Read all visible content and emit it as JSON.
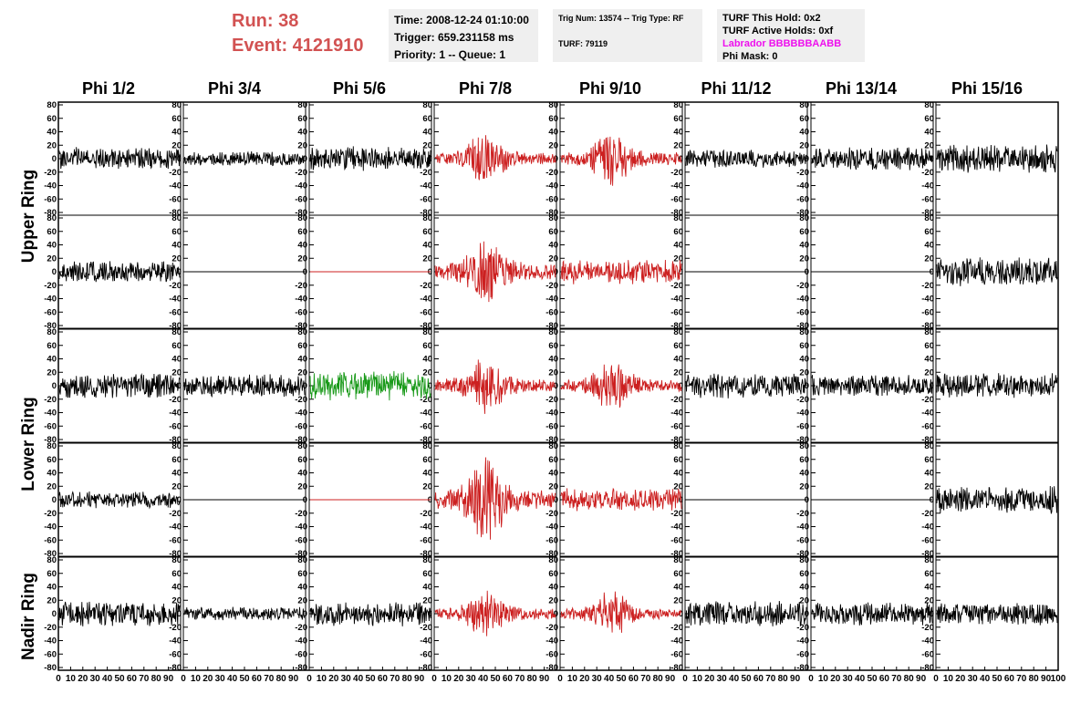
{
  "header": {
    "run_label": "Run:    38",
    "event_label": "Event: 4121910",
    "time": "Time: 2008-12-24 01:10:00",
    "trigger": "Trigger: 659.231158 ms",
    "priority": "Priority: 1 -- Queue: 1",
    "trig_num": "Trig Num: 13574 -- Trig Type: RF",
    "turf": "TURF: 79119",
    "turf_this_hold": "TURF This Hold: 0x2",
    "turf_active_holds": "TURF Active Holds: 0xf",
    "labrador": "Labrador BBBBBBAABB",
    "phi_mask": "Phi Mask: 0"
  },
  "columns": [
    "Phi 1/2",
    "Phi 3/4",
    "Phi 5/6",
    "Phi 7/8",
    "Phi 9/10",
    "Phi 11/12",
    "Phi 13/14",
    "Phi 15/16"
  ],
  "row_groups": [
    "Upper Ring",
    "Lower Ring",
    "Nadir Ring"
  ],
  "colors": {
    "normal": "#000000",
    "triggered": "#cc2020",
    "highlight": "#1a9a1a",
    "title": "#d25252",
    "labrador": "#ee10ee"
  },
  "chart_data": {
    "type": "line",
    "ylim": [
      -80,
      80
    ],
    "y_ticks": [
      80,
      60,
      40,
      20,
      0,
      -20,
      -40,
      -60,
      -80
    ],
    "xlim": [
      0,
      100
    ],
    "x_ticks": [
      0,
      10,
      20,
      30,
      40,
      50,
      60,
      70,
      80,
      90
    ],
    "x_end_tick": 100,
    "panels": [
      {
        "row": 0,
        "col": 0,
        "color": "normal",
        "amp": 14,
        "env": "flat",
        "seed": 11
      },
      {
        "row": 0,
        "col": 1,
        "color": "normal",
        "amp": 9,
        "env": "flat",
        "seed": 12
      },
      {
        "row": 0,
        "col": 2,
        "color": "normal",
        "amp": 15,
        "env": "flat",
        "seed": 13
      },
      {
        "row": 0,
        "col": 3,
        "color": "triggered",
        "amp": 30,
        "env": "burst",
        "seed": 14
      },
      {
        "row": 0,
        "col": 4,
        "color": "triggered",
        "amp": 32,
        "env": "burst",
        "seed": 15
      },
      {
        "row": 0,
        "col": 5,
        "color": "normal",
        "amp": 11,
        "env": "flat",
        "seed": 16
      },
      {
        "row": 0,
        "col": 6,
        "color": "normal",
        "amp": 14,
        "env": "flat",
        "seed": 17
      },
      {
        "row": 0,
        "col": 7,
        "color": "normal",
        "amp": 17,
        "env": "flat",
        "seed": 18
      },
      {
        "row": 1,
        "col": 0,
        "color": "normal",
        "amp": 14,
        "env": "flat",
        "seed": 21
      },
      {
        "row": 1,
        "col": 1,
        "color": "normal",
        "amp": 0,
        "env": "flat",
        "seed": 22
      },
      {
        "row": 1,
        "col": 2,
        "color": "triggered",
        "amp": 0,
        "env": "flat",
        "seed": 23
      },
      {
        "row": 1,
        "col": 3,
        "color": "triggered",
        "amp": 42,
        "env": "burst",
        "seed": 24
      },
      {
        "row": 1,
        "col": 4,
        "color": "triggered",
        "amp": 15,
        "env": "flat",
        "seed": 25
      },
      {
        "row": 1,
        "col": 5,
        "color": "normal",
        "amp": 0,
        "env": "flat",
        "seed": 26
      },
      {
        "row": 1,
        "col": 6,
        "color": "normal",
        "amp": 0,
        "env": "flat",
        "seed": 27
      },
      {
        "row": 1,
        "col": 7,
        "color": "normal",
        "amp": 18,
        "env": "flat",
        "seed": 28
      },
      {
        "row": 2,
        "col": 0,
        "color": "normal",
        "amp": 15,
        "env": "flat",
        "seed": 31
      },
      {
        "row": 2,
        "col": 1,
        "color": "normal",
        "amp": 14,
        "env": "flat",
        "seed": 32
      },
      {
        "row": 2,
        "col": 2,
        "color": "highlight",
        "amp": 18,
        "env": "flat",
        "seed": 33
      },
      {
        "row": 2,
        "col": 3,
        "color": "triggered",
        "amp": 32,
        "env": "burst",
        "seed": 34
      },
      {
        "row": 2,
        "col": 4,
        "color": "triggered",
        "amp": 30,
        "env": "burst",
        "seed": 35
      },
      {
        "row": 2,
        "col": 5,
        "color": "normal",
        "amp": 15,
        "env": "flat",
        "seed": 36
      },
      {
        "row": 2,
        "col": 6,
        "color": "normal",
        "amp": 13,
        "env": "flat",
        "seed": 37
      },
      {
        "row": 2,
        "col": 7,
        "color": "normal",
        "amp": 15,
        "env": "flat",
        "seed": 38
      },
      {
        "row": 3,
        "col": 0,
        "color": "normal",
        "amp": 10,
        "env": "flat",
        "seed": 41
      },
      {
        "row": 3,
        "col": 1,
        "color": "normal",
        "amp": 0,
        "env": "flat",
        "seed": 42
      },
      {
        "row": 3,
        "col": 2,
        "color": "triggered",
        "amp": 0,
        "env": "flat",
        "seed": 43
      },
      {
        "row": 3,
        "col": 3,
        "color": "triggered",
        "amp": 48,
        "env": "burst",
        "seed": 44
      },
      {
        "row": 3,
        "col": 4,
        "color": "triggered",
        "amp": 14,
        "env": "flat",
        "seed": 45
      },
      {
        "row": 3,
        "col": 5,
        "color": "normal",
        "amp": 0,
        "env": "flat",
        "seed": 46
      },
      {
        "row": 3,
        "col": 6,
        "color": "normal",
        "amp": 0,
        "env": "flat",
        "seed": 47
      },
      {
        "row": 3,
        "col": 7,
        "color": "normal",
        "amp": 18,
        "env": "flat",
        "seed": 48
      },
      {
        "row": 4,
        "col": 0,
        "color": "normal",
        "amp": 15,
        "env": "flat",
        "seed": 51
      },
      {
        "row": 4,
        "col": 1,
        "color": "normal",
        "amp": 8,
        "env": "flat",
        "seed": 52
      },
      {
        "row": 4,
        "col": 2,
        "color": "normal",
        "amp": 15,
        "env": "flat",
        "seed": 53
      },
      {
        "row": 4,
        "col": 3,
        "color": "triggered",
        "amp": 28,
        "env": "burst",
        "seed": 54
      },
      {
        "row": 4,
        "col": 4,
        "color": "triggered",
        "amp": 26,
        "env": "burst",
        "seed": 55
      },
      {
        "row": 4,
        "col": 5,
        "color": "normal",
        "amp": 16,
        "env": "flat",
        "seed": 56
      },
      {
        "row": 4,
        "col": 6,
        "color": "normal",
        "amp": 14,
        "env": "flat",
        "seed": 57
      },
      {
        "row": 4,
        "col": 7,
        "color": "normal",
        "amp": 14,
        "env": "flat",
        "seed": 58
      }
    ]
  }
}
